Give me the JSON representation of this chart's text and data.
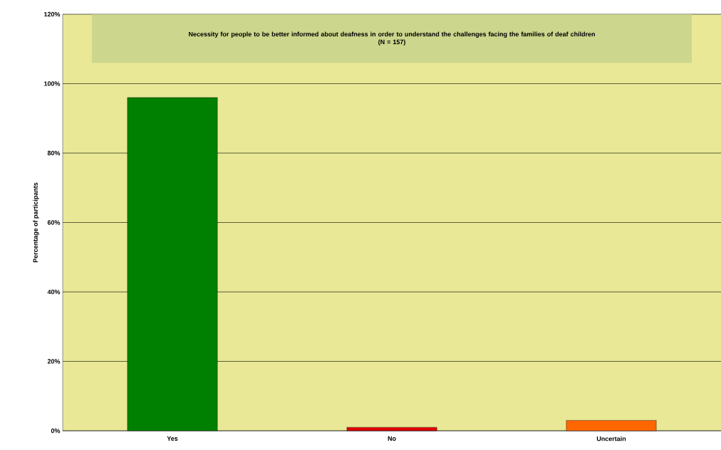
{
  "chart_data": {
    "type": "bar",
    "title": "Necessity for people to be better informed about deafness in order to understand the challenges facing the families of deaf children",
    "subtitle": "(N = 157)",
    "ylabel": "Percentage of participants",
    "categories": [
      "Yes",
      "No",
      "Uncertain"
    ],
    "values": [
      96,
      1,
      3
    ],
    "colors": [
      "#008000",
      "#e00000",
      "#ff6600"
    ],
    "ylim": [
      0,
      120
    ],
    "yticks": [
      {
        "value": 0,
        "label": "0%"
      },
      {
        "value": 20,
        "label": "20%"
      },
      {
        "value": 40,
        "label": "40%"
      },
      {
        "value": 60,
        "label": "60%"
      },
      {
        "value": 80,
        "label": "80%"
      },
      {
        "value": 100,
        "label": "100%"
      },
      {
        "value": 120,
        "label": "120%"
      }
    ],
    "grid": "y"
  }
}
